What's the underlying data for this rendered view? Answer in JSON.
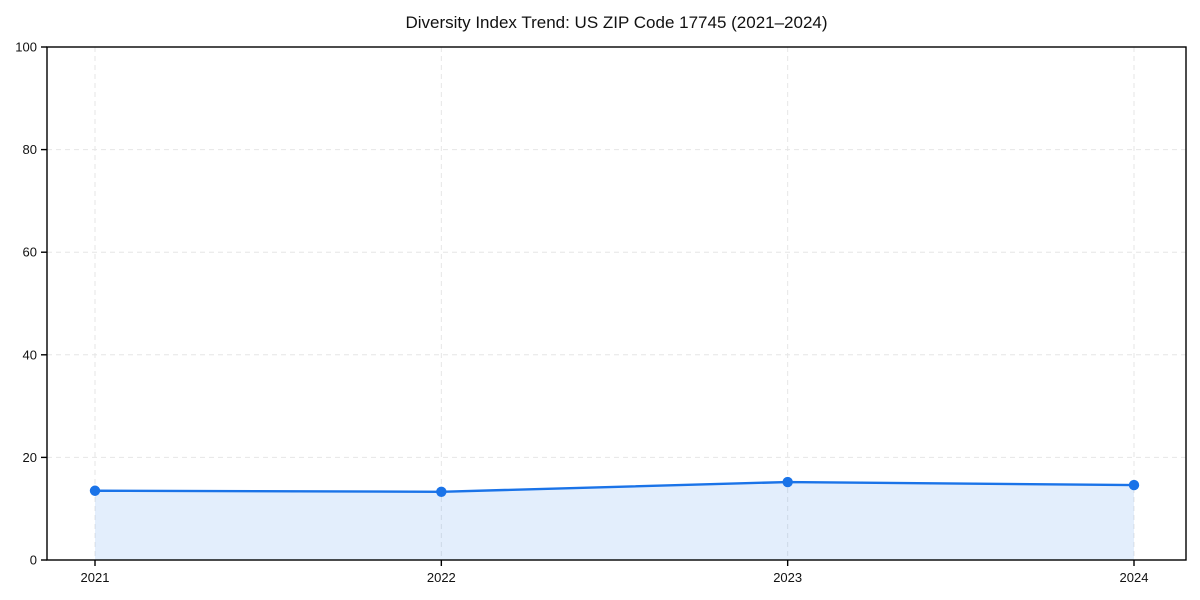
{
  "chart_data": {
    "type": "line",
    "title": "Diversity Index Trend: US ZIP Code 17745 (2021–2024)",
    "x": [
      "2021",
      "2022",
      "2023",
      "2024"
    ],
    "series": [
      {
        "name": "Diversity Index",
        "values": [
          13.5,
          13.3,
          15.2,
          14.6
        ]
      }
    ],
    "xlabel": "",
    "ylabel": "",
    "ylim": [
      0,
      100
    ],
    "yticks": [
      0,
      20,
      40,
      60,
      80,
      100
    ],
    "grid": true,
    "grid_style": "dashed",
    "legend_position": "none",
    "colors": {
      "line": "#1a73e8",
      "marker": "#1a73e8",
      "area_fill": "rgba(26, 115, 232, 0.12)",
      "gridline": "#e6e6e6",
      "axis": "#000000",
      "text": "#111111",
      "background": "#ffffff"
    }
  }
}
